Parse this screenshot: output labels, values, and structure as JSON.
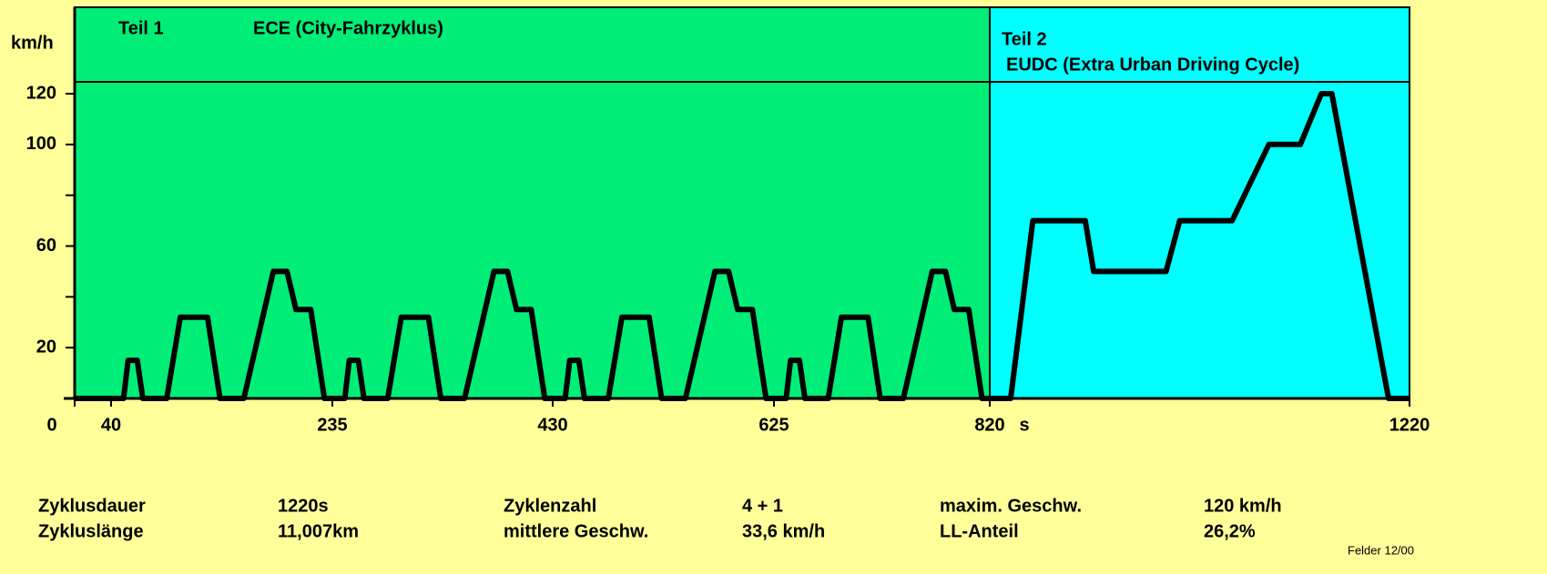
{
  "chart_data": {
    "type": "line",
    "y_label": "km/h",
    "x_label": "s",
    "sections": [
      {
        "label": "Teil 1",
        "title": "ECE (City-Fahrzyklus)",
        "color": "#00ee77",
        "range": [
          0,
          820
        ]
      },
      {
        "label": "Teil 2",
        "title": "EUDC (Extra Urban Driving Cycle)",
        "color": "#00ffff",
        "range": [
          820,
          1220
        ]
      }
    ],
    "x": [
      0,
      40,
      51,
      55,
      63,
      68,
      89,
      101,
      125,
      136,
      157,
      183,
      195,
      203,
      216,
      228,
      235,
      246,
      250,
      258,
      263,
      284,
      296,
      320,
      331,
      352,
      378,
      390,
      398,
      411,
      423,
      430,
      441,
      445,
      453,
      458,
      479,
      491,
      515,
      526,
      547,
      573,
      585,
      593,
      606,
      618,
      625,
      636,
      640,
      648,
      653,
      674,
      686,
      710,
      721,
      742,
      768,
      780,
      788,
      801,
      813,
      820,
      840,
      861,
      911,
      919,
      988,
      1001,
      1051,
      1086,
      1116,
      1136,
      1146,
      1200,
      1220
    ],
    "values": [
      0,
      0,
      0,
      15,
      15,
      0,
      0,
      32,
      32,
      0,
      0,
      50,
      50,
      35,
      35,
      0,
      0,
      0,
      15,
      15,
      0,
      0,
      32,
      32,
      0,
      0,
      50,
      50,
      35,
      35,
      0,
      0,
      0,
      15,
      15,
      0,
      0,
      32,
      32,
      0,
      0,
      50,
      50,
      35,
      35,
      0,
      0,
      0,
      15,
      15,
      0,
      0,
      32,
      32,
      0,
      0,
      50,
      50,
      35,
      35,
      0,
      0,
      0,
      70,
      70,
      50,
      50,
      70,
      70,
      100,
      100,
      120,
      120,
      0,
      0
    ],
    "color": "#000000",
    "xlim": [
      0,
      1220
    ],
    "xticks": [
      0,
      40,
      235,
      430,
      625,
      820,
      1220
    ],
    "ylim": [
      0,
      120
    ],
    "yticks": [
      20,
      60,
      100,
      120
    ],
    "yminor_ticks": [
      40,
      80
    ],
    "summary": [
      {
        "label": "Zyklusdauer",
        "value": "1220s"
      },
      {
        "label": "Zykluslänge",
        "value": "11,007km"
      },
      {
        "label": "Zyklenzahl",
        "value": "4 + 1"
      },
      {
        "label": "mittlere Geschw.",
        "value": "33,6 km/h"
      },
      {
        "label": "maxim. Geschw.",
        "value": "120 km/h"
      },
      {
        "label": "LL-Anteil",
        "value": "26,2%"
      }
    ],
    "note": "Felder  12/00"
  }
}
